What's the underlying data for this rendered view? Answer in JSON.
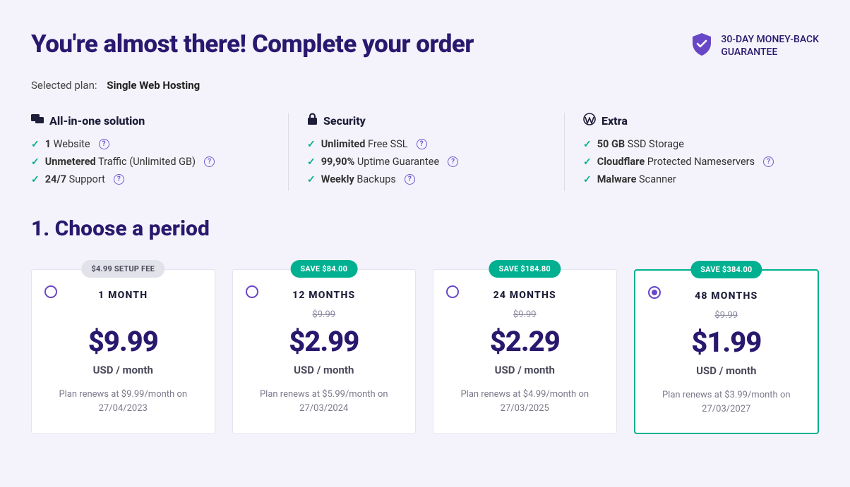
{
  "title": "You're almost there! Complete your order",
  "guarantee": {
    "line1": "30-DAY MONEY-BACK",
    "line2": "GUARANTEE"
  },
  "selected": {
    "label": "Selected plan:",
    "plan": "Single Web Hosting"
  },
  "features": {
    "col1": {
      "heading": "All-in-one solution",
      "items": [
        {
          "bold": "1",
          "rest": "Website",
          "help": true
        },
        {
          "bold": "Unmetered",
          "rest": "Traffic (Unlimited GB)",
          "help": true
        },
        {
          "bold": "24/7",
          "rest": "Support",
          "help": true
        }
      ]
    },
    "col2": {
      "heading": "Security",
      "items": [
        {
          "bold": "Unlimited",
          "rest": "Free SSL",
          "help": true
        },
        {
          "bold": "99,90%",
          "rest": "Uptime Guarantee",
          "help": true
        },
        {
          "bold": "Weekly",
          "rest": "Backups",
          "help": true
        }
      ]
    },
    "col3": {
      "heading": "Extra",
      "items": [
        {
          "bold": "50 GB",
          "rest": "SSD Storage",
          "help": false
        },
        {
          "bold": "Cloudflare",
          "rest": "Protected Nameservers",
          "help": true
        },
        {
          "bold": "Malware",
          "rest": "Scanner",
          "help": false
        }
      ]
    }
  },
  "section_title": "1. Choose a period",
  "periods": [
    {
      "badge": "$4.99 SETUP FEE",
      "badge_type": "fee",
      "label": "1 MONTH",
      "old": "",
      "price": "$9.99",
      "unit": "USD / month",
      "renew": "Plan renews at $9.99/month on 27/04/2023",
      "selected": false
    },
    {
      "badge": "SAVE $84.00",
      "badge_type": "save",
      "label": "12 MONTHS",
      "old": "$9.99",
      "price": "$2.99",
      "unit": "USD / month",
      "renew": "Plan renews at $5.99/month on 27/03/2024",
      "selected": false
    },
    {
      "badge": "SAVE $184.80",
      "badge_type": "save",
      "label": "24 MONTHS",
      "old": "$9.99",
      "price": "$2.29",
      "unit": "USD / month",
      "renew": "Plan renews at $4.99/month on 27/03/2025",
      "selected": false
    },
    {
      "badge": "SAVE $384.00",
      "badge_type": "save",
      "label": "48 MONTHS",
      "old": "$9.99",
      "price": "$1.99",
      "unit": "USD / month",
      "renew": "Plan renews at $3.99/month on 27/03/2027",
      "selected": true
    }
  ],
  "colors": {
    "accent": "#6747c7",
    "green": "#00b090",
    "heading": "#29186e",
    "bg": "#f4f3fb"
  }
}
